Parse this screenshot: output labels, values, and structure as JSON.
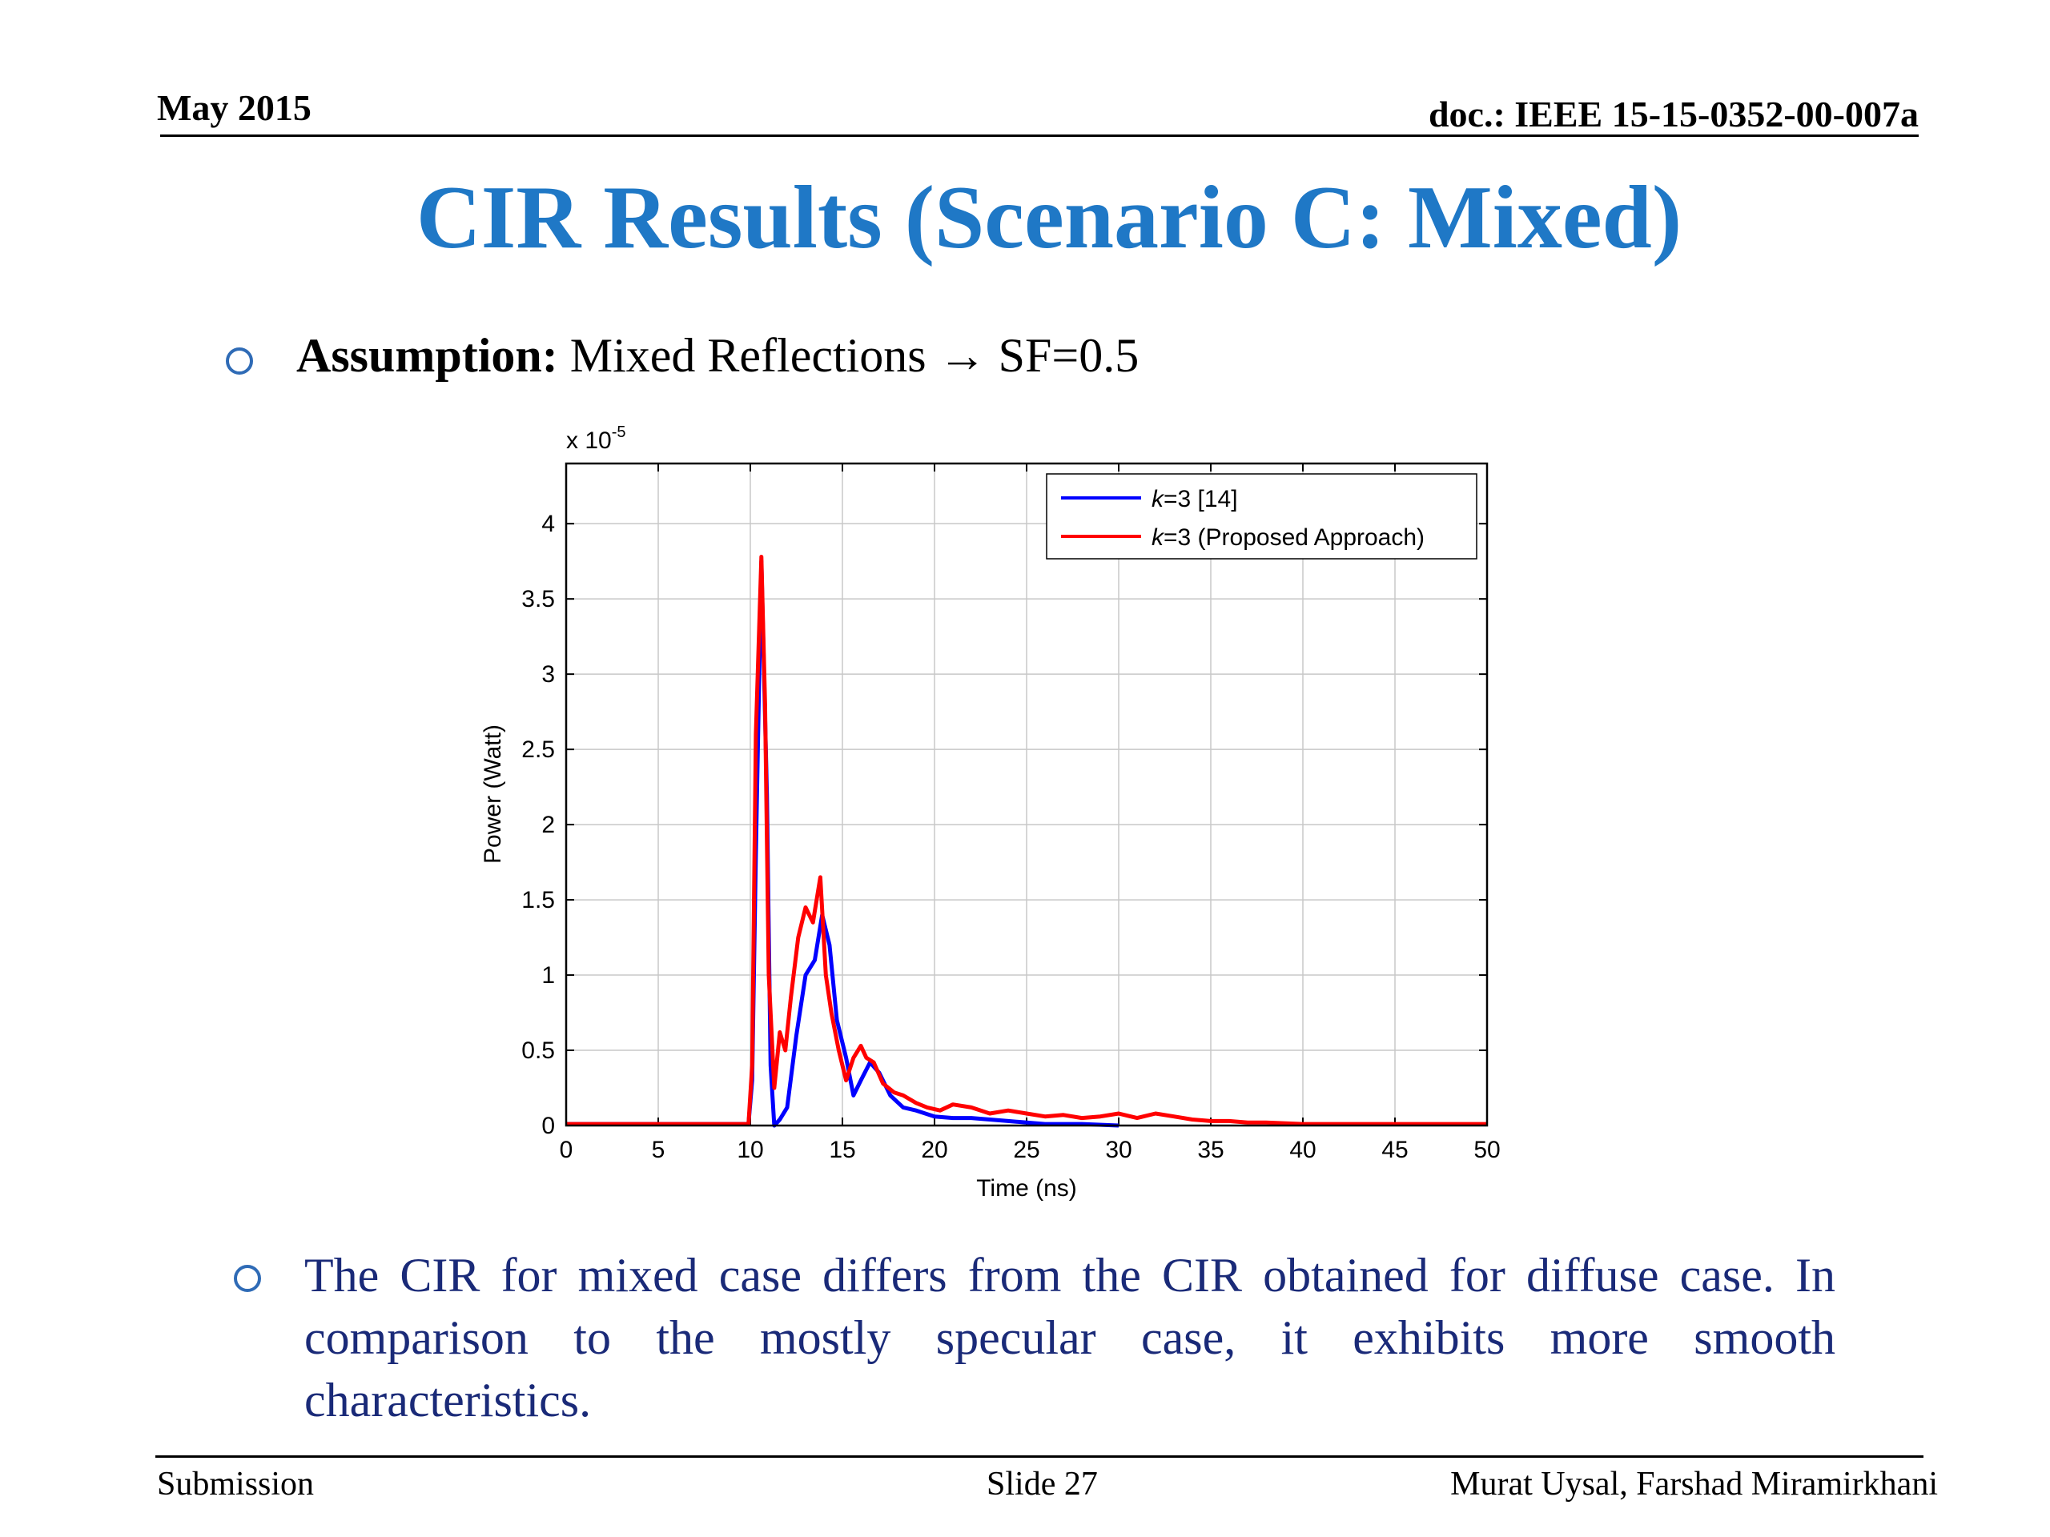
{
  "header": {
    "date": "May 2015",
    "doc": "doc.: IEEE 15-15-0352-00-007a"
  },
  "title": "CIR Results (Scenario C: Mixed)",
  "bullet1": {
    "label": "Assumption:",
    "text": " Mixed Reflections ",
    "arrow": "→",
    "sf": " SF=0.5"
  },
  "bullet2": "The CIR for mixed case differs from the CIR obtained for diffuse case. In comparison to the mostly specular case, it exhibits more smooth characteristics.",
  "chart_data": {
    "type": "line",
    "xlabel": "Time (ns)",
    "ylabel": "Power (Watt)",
    "y_multiplier": "x 10",
    "y_exponent": "-5",
    "xlim": [
      0,
      50
    ],
    "ylim": [
      0,
      4.4
    ],
    "x_ticks": [
      "0",
      "5",
      "10",
      "15",
      "20",
      "25",
      "30",
      "35",
      "40",
      "45",
      "50"
    ],
    "y_ticks": [
      "0",
      "0.5",
      "1",
      "1.5",
      "2",
      "2.5",
      "3",
      "3.5",
      "4"
    ],
    "grid": true,
    "legend_position": "top-right",
    "series": [
      {
        "name": "k=3 [14]",
        "legend_k": "k",
        "legend_rest": "=3 [14]",
        "color": "#0000ff",
        "x": [
          0,
          9.9,
          10.1,
          10.3,
          10.6,
          10.9,
          11.1,
          11.3,
          11.6,
          12.0,
          12.5,
          13.0,
          13.5,
          13.9,
          14.3,
          14.7,
          15.2,
          15.6,
          16.0,
          16.5,
          17.0,
          17.6,
          18.3,
          19.0,
          20.0,
          21.0,
          22.0,
          23.0,
          24.0,
          25.0,
          26.0,
          28.0,
          30.0
        ],
        "y": [
          0.01,
          0.01,
          0.3,
          1.8,
          3.75,
          2.2,
          0.4,
          0.0,
          0.04,
          0.12,
          0.6,
          1.0,
          1.1,
          1.4,
          1.2,
          0.7,
          0.45,
          0.2,
          0.3,
          0.42,
          0.35,
          0.2,
          0.12,
          0.1,
          0.06,
          0.05,
          0.05,
          0.04,
          0.03,
          0.02,
          0.01,
          0.01,
          0.0
        ]
      },
      {
        "name": "k=3 (Proposed Approach)",
        "legend_k": "k",
        "legend_rest": "=3 (Proposed Approach)",
        "color": "#ff0000",
        "x": [
          0,
          9.9,
          10.1,
          10.3,
          10.6,
          10.8,
          11.0,
          11.3,
          11.6,
          11.9,
          12.2,
          12.6,
          13.0,
          13.4,
          13.8,
          14.1,
          14.4,
          14.8,
          15.2,
          15.6,
          16.0,
          16.3,
          16.7,
          17.2,
          17.8,
          18.3,
          19.0,
          19.6,
          20.3,
          21.0,
          22.0,
          23.0,
          24.0,
          25.0,
          26.0,
          27.0,
          28.0,
          29.0,
          30.0,
          31.0,
          32.0,
          33.0,
          34.0,
          35.0,
          36.0,
          37.0,
          38.0,
          40.0,
          45.0,
          50.0
        ],
        "y": [
          0.01,
          0.01,
          0.4,
          2.6,
          3.78,
          2.8,
          1.0,
          0.25,
          0.62,
          0.5,
          0.85,
          1.25,
          1.45,
          1.35,
          1.65,
          1.0,
          0.75,
          0.5,
          0.3,
          0.45,
          0.53,
          0.45,
          0.42,
          0.28,
          0.22,
          0.2,
          0.15,
          0.12,
          0.1,
          0.14,
          0.12,
          0.08,
          0.1,
          0.08,
          0.06,
          0.07,
          0.05,
          0.06,
          0.08,
          0.05,
          0.08,
          0.06,
          0.04,
          0.03,
          0.03,
          0.02,
          0.02,
          0.01,
          0.01,
          0.01
        ]
      }
    ]
  },
  "footer": {
    "left": "Submission",
    "center": "Slide 27",
    "right": "Murat Uysal, Farshad Miramirkhani"
  }
}
